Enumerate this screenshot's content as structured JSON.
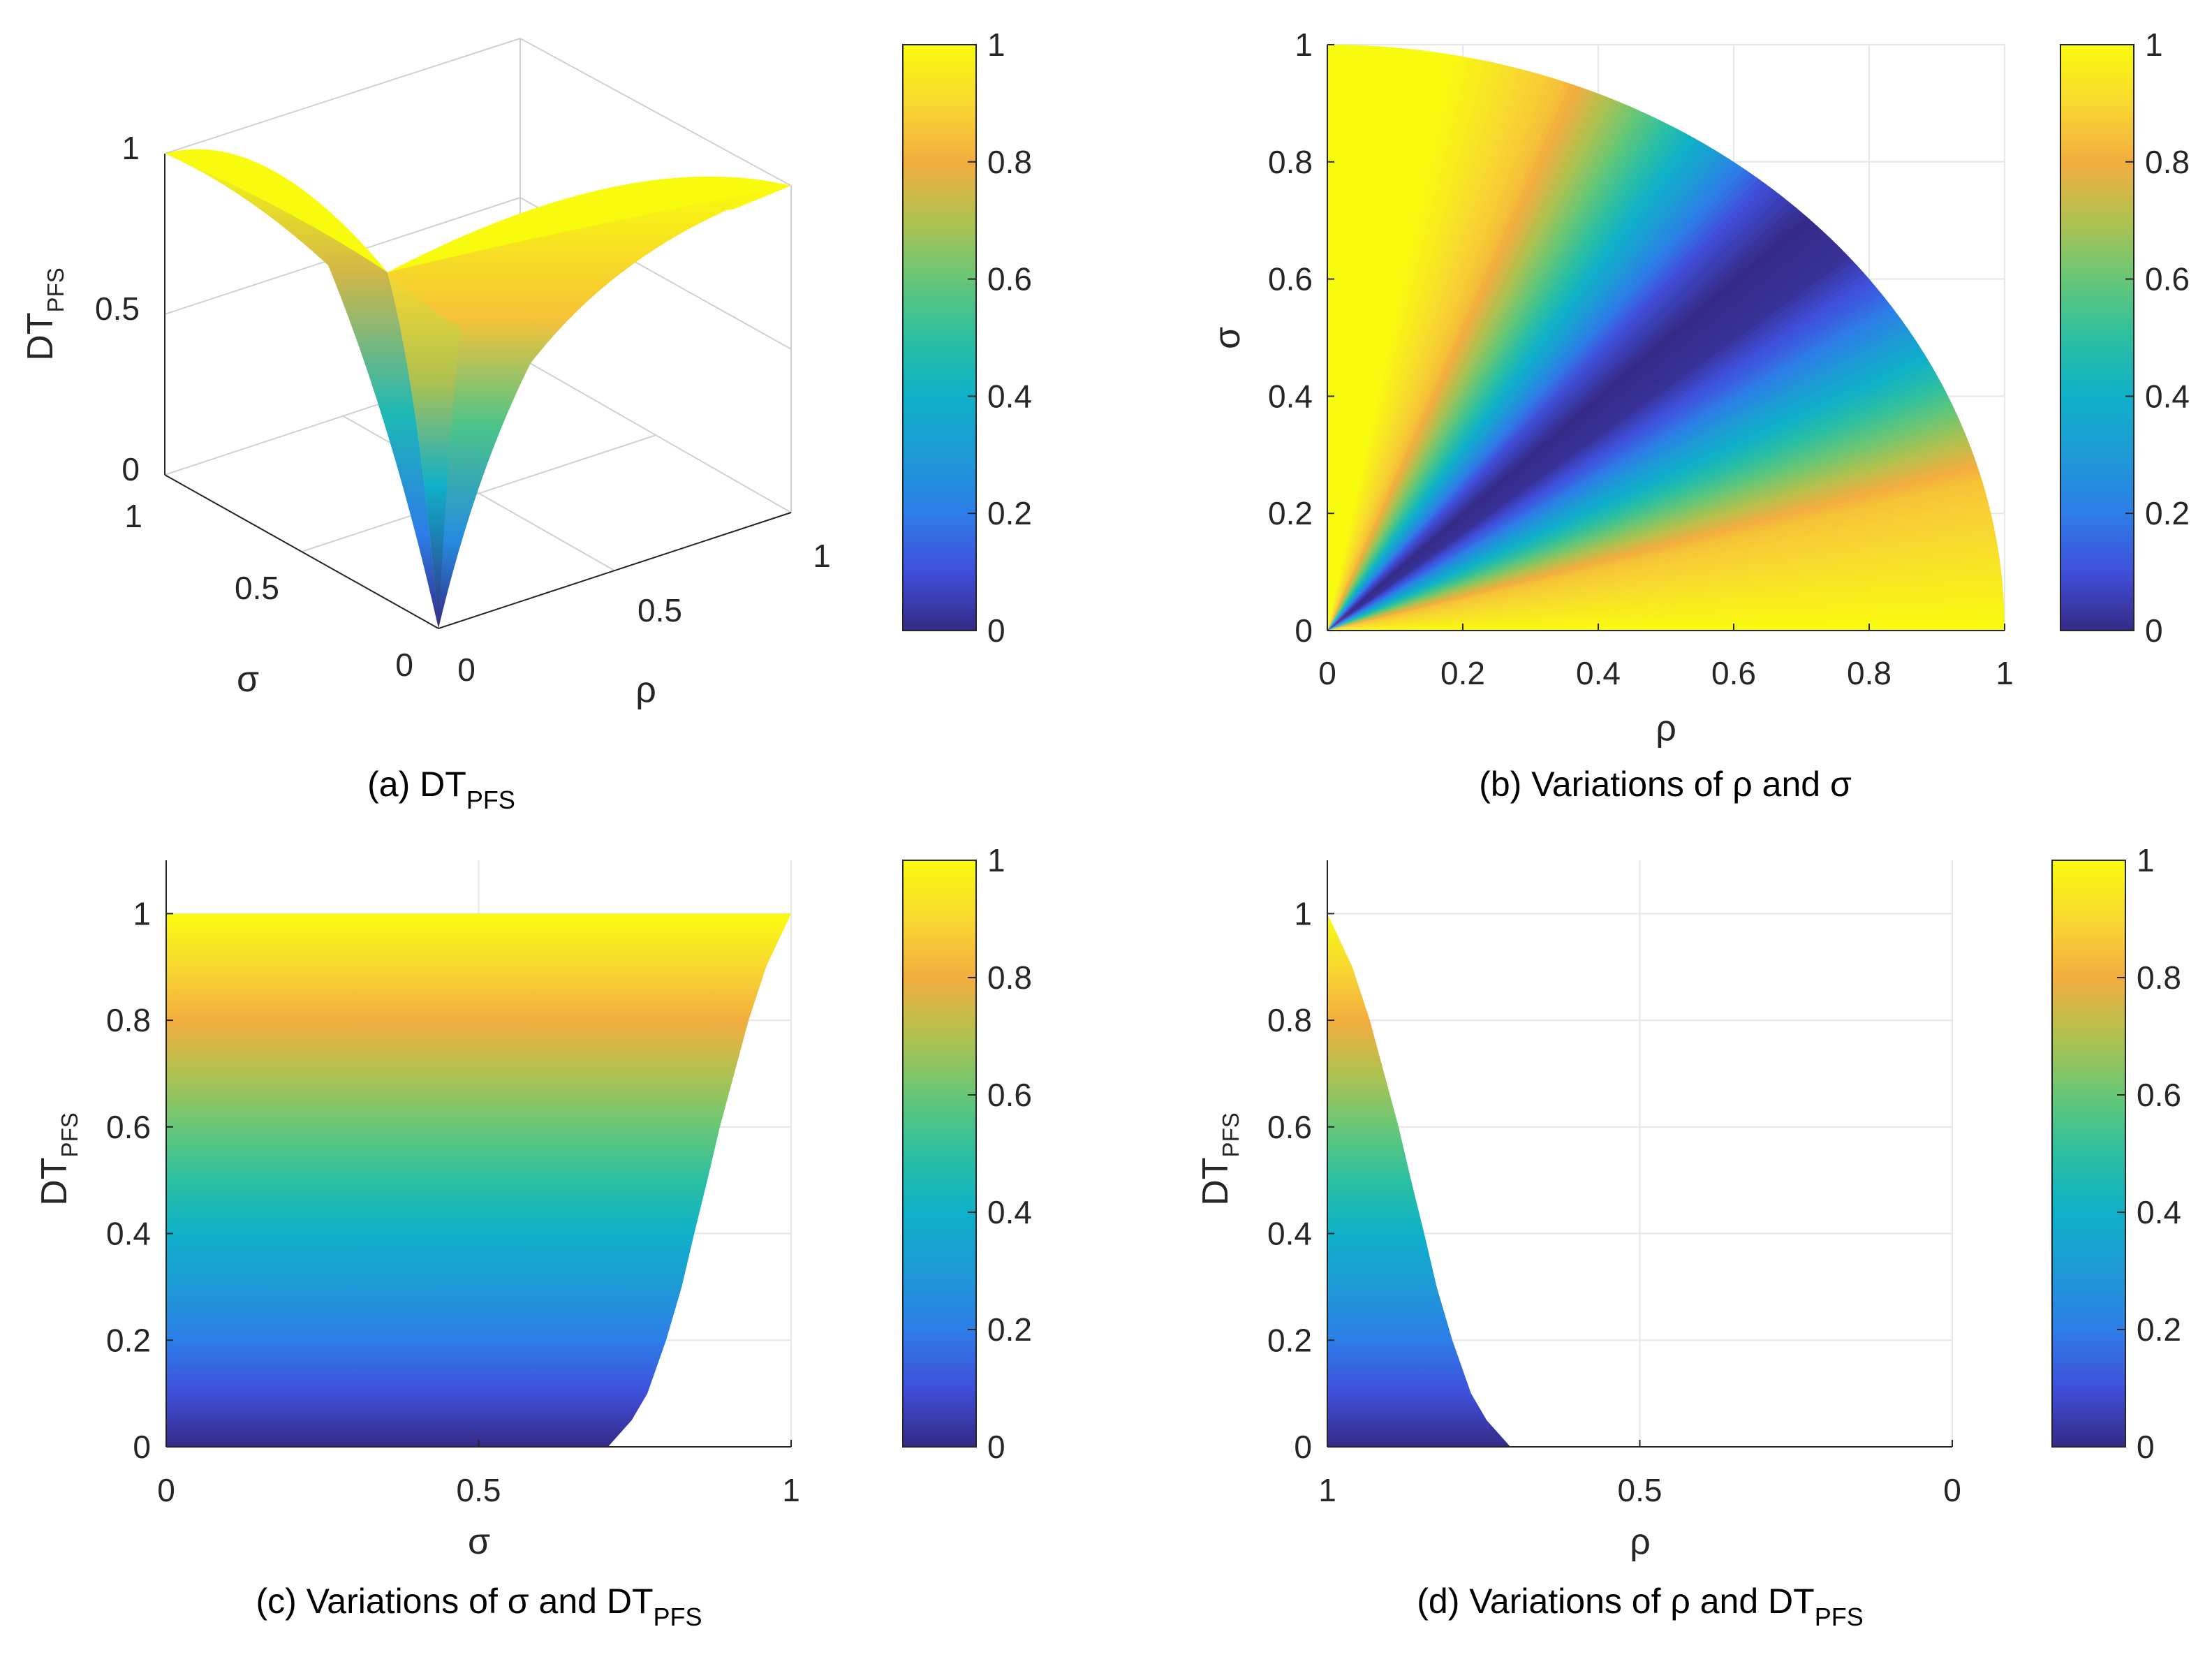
{
  "colormap": {
    "name": "parula",
    "stops": [
      [
        0.0,
        "#352a87"
      ],
      [
        0.1,
        "#3f4fda"
      ],
      [
        0.2,
        "#2d7de8"
      ],
      [
        0.3,
        "#1d9ad6"
      ],
      [
        0.4,
        "#0fb0c9"
      ],
      [
        0.5,
        "#2bbfa2"
      ],
      [
        0.6,
        "#67c776"
      ],
      [
        0.7,
        "#b0c14f"
      ],
      [
        0.8,
        "#f4ad3f"
      ],
      [
        0.9,
        "#f8d830"
      ],
      [
        1.0,
        "#f9fb0e"
      ]
    ]
  },
  "colorbar": {
    "ticks": [
      "0",
      "0.2",
      "0.4",
      "0.6",
      "0.8",
      "1"
    ]
  },
  "chart_data": [
    {
      "id": "a",
      "type": "surface",
      "caption": "(a) DT",
      "caption_sub": "PFS",
      "zlabel": "DT",
      "zlabel_sub": "PFS",
      "xlabel": "ρ",
      "ylabel": "σ",
      "xlim": [
        0,
        1
      ],
      "ylim": [
        0,
        1
      ],
      "zlim": [
        0,
        1
      ],
      "xticks": [
        "0",
        "0.5",
        "1"
      ],
      "yticks": [
        "0",
        "0.5",
        "1"
      ],
      "zticks": [
        "0",
        "0.5",
        "1"
      ],
      "surface": {
        "domain": "quarter disk ρ² + σ² ≤ 1",
        "corners": [
          {
            "rho": 0,
            "sigma": 0,
            "dt": 0
          },
          {
            "rho": 1,
            "sigma": 0,
            "dt": 1
          },
          {
            "rho": 0,
            "sigma": 1,
            "dt": 1
          },
          {
            "rho": 0.707,
            "sigma": 0.707,
            "dt": 0.5
          }
        ]
      }
    },
    {
      "id": "b",
      "type": "heatmap",
      "caption": "(b) Variations of ρ and σ",
      "xlabel": "ρ",
      "ylabel": "σ",
      "xlim": [
        0,
        1
      ],
      "ylim": [
        0,
        1
      ],
      "xticks": [
        "0",
        "0.2",
        "0.4",
        "0.6",
        "0.8",
        "1"
      ],
      "yticks": [
        "0",
        "0.2",
        "0.4",
        "0.6",
        "0.8",
        "1"
      ],
      "grid": true,
      "region": "quarter disk ρ² + σ² ≤ 1",
      "color_by_angle": [
        {
          "angle_deg": 0,
          "value": 1.0
        },
        {
          "angle_deg": 15,
          "value": 0.85
        },
        {
          "angle_deg": 25,
          "value": 0.5
        },
        {
          "angle_deg": 35,
          "value": 0.15
        },
        {
          "angle_deg": 40,
          "value": 0.02
        },
        {
          "angle_deg": 45,
          "value": 0.0
        },
        {
          "angle_deg": 50,
          "value": 0.1
        },
        {
          "angle_deg": 60,
          "value": 0.5
        },
        {
          "angle_deg": 70,
          "value": 0.85
        },
        {
          "angle_deg": 80,
          "value": 1.0
        },
        {
          "angle_deg": 90,
          "value": 1.0
        }
      ]
    },
    {
      "id": "c",
      "type": "area",
      "caption": "(c) Variations of σ and DT",
      "caption_sub": "PFS",
      "xlabel": "σ",
      "ylabel": "DT",
      "ylabel_sub": "PFS",
      "xlim": [
        0,
        1
      ],
      "ylim": [
        0,
        1.1
      ],
      "xticks": [
        "0",
        "0.5",
        "1"
      ],
      "yticks": [
        "0",
        "0.2",
        "0.4",
        "0.6",
        "0.8",
        "1"
      ],
      "grid": true,
      "boundary": [
        {
          "dt": 0.0,
          "x": 0.707
        },
        {
          "dt": 0.05,
          "x": 0.745
        },
        {
          "dt": 0.1,
          "x": 0.77
        },
        {
          "dt": 0.2,
          "x": 0.8
        },
        {
          "dt": 0.3,
          "x": 0.825
        },
        {
          "dt": 0.4,
          "x": 0.845
        },
        {
          "dt": 0.5,
          "x": 0.866
        },
        {
          "dt": 0.6,
          "x": 0.886
        },
        {
          "dt": 0.7,
          "x": 0.909
        },
        {
          "dt": 0.8,
          "x": 0.932
        },
        {
          "dt": 0.9,
          "x": 0.96
        },
        {
          "dt": 1.0,
          "x": 1.0
        }
      ]
    },
    {
      "id": "d",
      "type": "area",
      "caption": "(d) Variations of ρ and DT",
      "caption_sub": "PFS",
      "xlabel": "ρ",
      "ylabel": "DT",
      "ylabel_sub": "PFS",
      "xlim": [
        1,
        0
      ],
      "ylim": [
        0,
        1.1
      ],
      "xticks": [
        "1",
        "0.5",
        "0"
      ],
      "yticks": [
        "0",
        "0.2",
        "0.4",
        "0.6",
        "0.8",
        "1"
      ],
      "grid": true,
      "boundary": [
        {
          "dt": 0.0,
          "x": 0.707
        },
        {
          "dt": 0.05,
          "x": 0.745
        },
        {
          "dt": 0.1,
          "x": 0.77
        },
        {
          "dt": 0.2,
          "x": 0.8
        },
        {
          "dt": 0.3,
          "x": 0.825
        },
        {
          "dt": 0.4,
          "x": 0.845
        },
        {
          "dt": 0.5,
          "x": 0.866
        },
        {
          "dt": 0.6,
          "x": 0.886
        },
        {
          "dt": 0.7,
          "x": 0.909
        },
        {
          "dt": 0.8,
          "x": 0.932
        },
        {
          "dt": 0.9,
          "x": 0.96
        },
        {
          "dt": 1.0,
          "x": 1.0
        }
      ]
    }
  ]
}
